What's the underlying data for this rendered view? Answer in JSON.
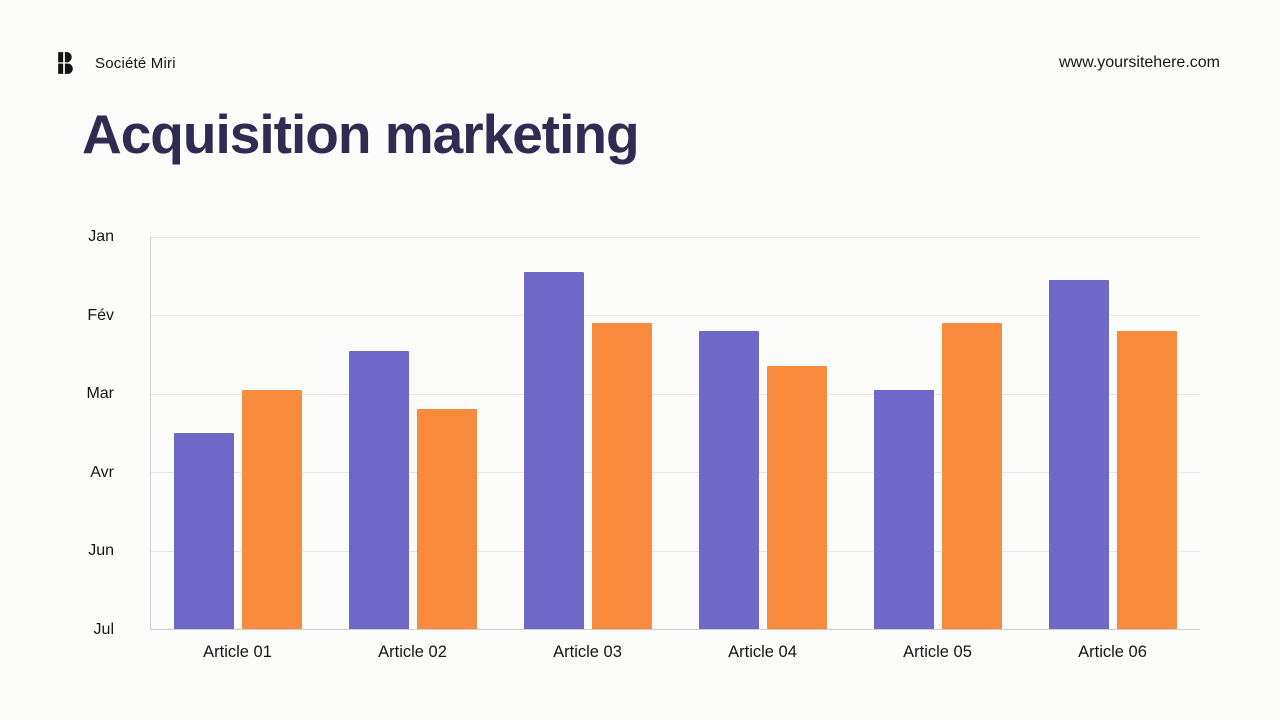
{
  "header": {
    "brand": "Société Miri",
    "website": "www.yoursitehere.com"
  },
  "title": "Acquisition marketing",
  "colors": {
    "purple": "#6f68c9",
    "orange": "#f98b3e",
    "title_text": "#2f2b51",
    "background": "#fcfcfb"
  },
  "chart_data": {
    "type": "bar",
    "title": "Acquisition marketing",
    "categories": [
      "Article 01",
      "Article 02",
      "Article 03",
      "Article 04",
      "Article 05",
      "Article 06"
    ],
    "series": [
      {
        "name": "series-purple",
        "color": "#6f68c9",
        "values": [
          2.5,
          3.55,
          4.55,
          3.8,
          3.05,
          4.45
        ]
      },
      {
        "name": "series-orange",
        "color": "#f98b3e",
        "values": [
          3.05,
          2.8,
          3.9,
          3.35,
          3.9,
          3.8
        ]
      }
    ],
    "y_ticks_top_to_bottom": [
      "Jan",
      "Fév",
      "Mar",
      "Avr",
      "Jun",
      "Jul"
    ],
    "y_min": 0,
    "y_max": 5,
    "grid": true,
    "legend": false,
    "xlabel": "",
    "ylabel": ""
  }
}
